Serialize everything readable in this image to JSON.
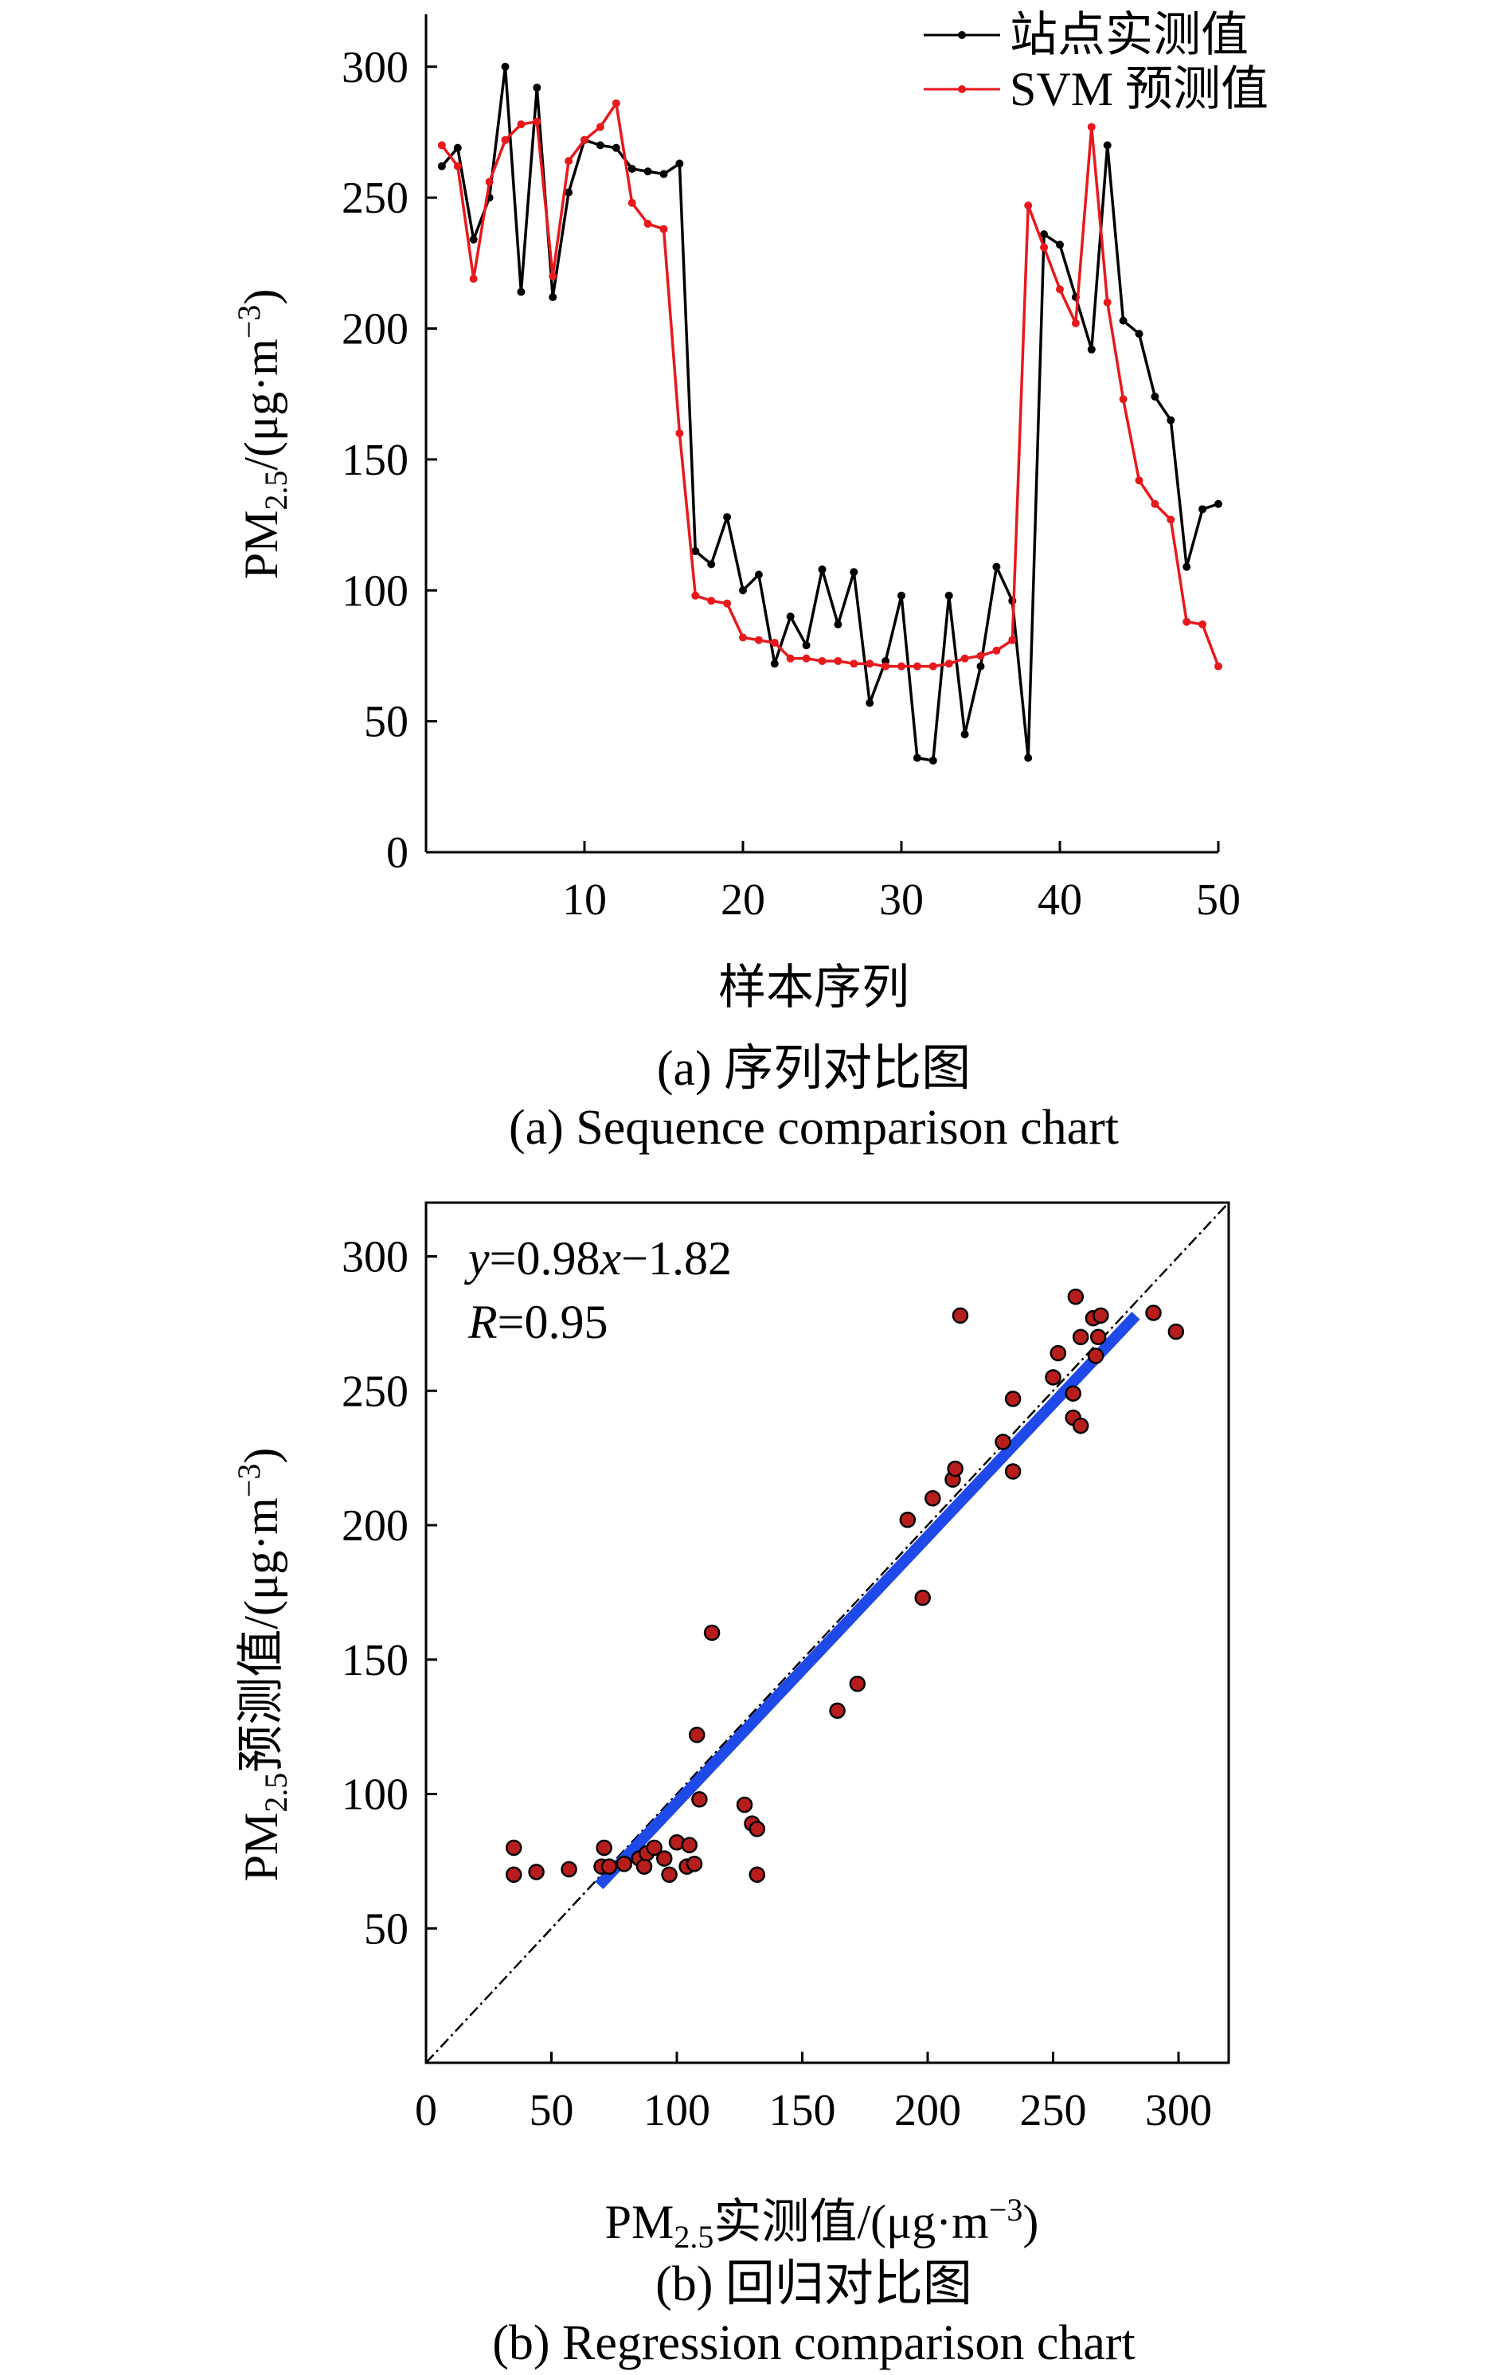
{
  "chart_data": [
    {
      "id": "a",
      "type": "line",
      "x": [
        1,
        2,
        3,
        4,
        5,
        6,
        7,
        8,
        9,
        10,
        11,
        12,
        13,
        14,
        15,
        16,
        17,
        18,
        19,
        20,
        21,
        22,
        23,
        24,
        25,
        26,
        27,
        28,
        29,
        30,
        31,
        32,
        33,
        34,
        35,
        36,
        37,
        38,
        39,
        40,
        41,
        42,
        43,
        44,
        45,
        46,
        47,
        48,
        49,
        50
      ],
      "series": [
        {
          "name": "站点实测值",
          "color": "#000000",
          "values": [
            262,
            269,
            234,
            250,
            300,
            214,
            292,
            212,
            252,
            272,
            270,
            269,
            261,
            260,
            259,
            263,
            115,
            110,
            128,
            100,
            106,
            72,
            90,
            79,
            108,
            87,
            107,
            57,
            73,
            98,
            36,
            35,
            98,
            45,
            71,
            109,
            96,
            36,
            236,
            232,
            212,
            192,
            270,
            203,
            198,
            174,
            165,
            109,
            131,
            133
          ]
        },
        {
          "name": "SVM 预测值",
          "color": "#e8191c",
          "values": [
            270,
            262,
            219,
            256,
            272,
            278,
            279,
            220,
            264,
            272,
            277,
            286,
            248,
            240,
            238,
            160,
            98,
            96,
            95,
            82,
            81,
            80,
            74,
            74,
            73,
            73,
            72,
            72,
            71,
            71,
            71,
            71,
            72,
            74,
            75,
            77,
            81,
            247,
            231,
            215,
            202,
            277,
            210,
            173,
            142,
            133,
            127,
            88,
            87,
            71
          ]
        }
      ],
      "xlabel": "样本序列",
      "ylabel_main": "PM",
      "ylabel_sub": "2.5",
      "ylabel_unit": "/(μg·m",
      "ylabel_sup": "−3",
      "ylabel_end": ")",
      "xticks": [
        10,
        20,
        30,
        40,
        50
      ],
      "yticks": [
        0,
        50,
        100,
        150,
        200,
        250,
        300
      ],
      "xlim": [
        0,
        50
      ],
      "ylim": [
        0,
        320
      ],
      "legend": "top-right",
      "caption_cn": "(a) 序列对比图",
      "caption_en": "(a) Sequence comparison chart"
    },
    {
      "id": "b",
      "type": "scatter",
      "points": [
        [
          35,
          80
        ],
        [
          35,
          70
        ],
        [
          44,
          71
        ],
        [
          57,
          72
        ],
        [
          70,
          73
        ],
        [
          71,
          80
        ],
        [
          73,
          73
        ],
        [
          79,
          74
        ],
        [
          85,
          76
        ],
        [
          87,
          73
        ],
        [
          88,
          78
        ],
        [
          91,
          80
        ],
        [
          95,
          76
        ],
        [
          97,
          70
        ],
        [
          100,
          82
        ],
        [
          104,
          73
        ],
        [
          105,
          81
        ],
        [
          107,
          74
        ],
        [
          108,
          122
        ],
        [
          109,
          98
        ],
        [
          114,
          160
        ],
        [
          127,
          96
        ],
        [
          130,
          89
        ],
        [
          132,
          87
        ],
        [
          132,
          70
        ],
        [
          164,
          131
        ],
        [
          172,
          141
        ],
        [
          192,
          202
        ],
        [
          198,
          173
        ],
        [
          202,
          210
        ],
        [
          210,
          217
        ],
        [
          211,
          221
        ],
        [
          213,
          278
        ],
        [
          230,
          231
        ],
        [
          234,
          247
        ],
        [
          234,
          220
        ],
        [
          250,
          255
        ],
        [
          252,
          264
        ],
        [
          258,
          240
        ],
        [
          258,
          249
        ],
        [
          259,
          285
        ],
        [
          261,
          270
        ],
        [
          261,
          237
        ],
        [
          266,
          277
        ],
        [
          267,
          263
        ],
        [
          268,
          270
        ],
        [
          269,
          278
        ],
        [
          290,
          279
        ],
        [
          299,
          272
        ]
      ],
      "fit_line": {
        "x": [
          69,
          283
        ],
        "y": [
          66,
          278
        ],
        "color": "#1f49e8"
      },
      "reference_line": {
        "x": [
          0,
          320
        ],
        "y": [
          0,
          320
        ],
        "style": "dash-dot"
      },
      "point_color": "#b81d1d",
      "xlabel_main": "PM",
      "xlabel_sub": "2.5",
      "xlabel_unit": "实测值/(μg·m",
      "xlabel_sup": "−3",
      "xlabel_end": ")",
      "ylabel_main": "PM",
      "ylabel_sub": "2.5",
      "ylabel_unit": "预测值/(μg·m",
      "ylabel_sup": "−3",
      "ylabel_end": ")",
      "xticks": [
        0,
        50,
        100,
        150,
        200,
        250,
        300
      ],
      "yticks": [
        50,
        100,
        150,
        200,
        250,
        300
      ],
      "xlim": [
        0,
        320
      ],
      "ylim": [
        0,
        320
      ],
      "eq_y": "y",
      "eq_body": "=0.98",
      "eq_x": "x",
      "eq_tail": "−1.82",
      "r_label": "R",
      "r_value": "=0.95",
      "caption_cn": "(b) 回归对比图",
      "caption_en": "(b) Regression comparison chart"
    }
  ]
}
